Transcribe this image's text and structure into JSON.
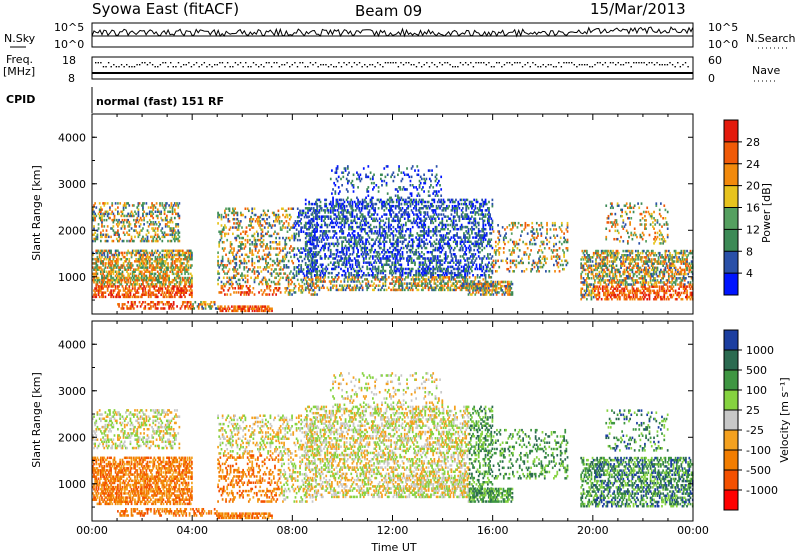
{
  "header": {
    "station": "Syowa East (fitACF)",
    "beam": "Beam 09",
    "date": "15/Mar/2013"
  },
  "top_panels": {
    "nsky_label": "N.Sky",
    "nsky_ticks": [
      "10^5",
      "10^0"
    ],
    "nsearch_label": "N.Search",
    "nsearch_ticks": [
      "10^5",
      "10^0"
    ],
    "freq_label_1": "Freq.",
    "freq_label_2": "[MHz]",
    "freq_ticks": [
      "18",
      "8"
    ],
    "nave_label": "Nave",
    "nave_ticks": [
      "60",
      "0"
    ],
    "cpid_label": "CPID",
    "cpid_value": "normal (fast) 151 RF"
  },
  "colors": {
    "power": [
      "#0014ff",
      "#2a50a8",
      "#3c8a56",
      "#55a060",
      "#e7c31e",
      "#f28a0c",
      "#f05a08",
      "#e41a0c"
    ],
    "velocity": [
      "#ff0000",
      "#f45000",
      "#f27d00",
      "#f4a11f",
      "#c8c8c8",
      "#86d340",
      "#3f9642",
      "#2b6a50",
      "#1c3ea0"
    ]
  },
  "chart_data": [
    {
      "type": "heatmap",
      "title": "Power",
      "ylabel": "Slant Range [km]",
      "xlabel": "",
      "x": [
        "00:00",
        "04:00",
        "08:00",
        "12:00",
        "16:00",
        "20:00",
        "00:00"
      ],
      "y_ticks": [
        "1000",
        "2000",
        "3000",
        "4000"
      ],
      "ylim": [
        200,
        4500
      ],
      "colorbar_label": "Power [dB]",
      "colorbar_ticks": [
        "4",
        "8",
        "12",
        "16",
        "20",
        "24",
        "28"
      ]
    },
    {
      "type": "heatmap",
      "title": "Velocity",
      "ylabel": "Slant Range [km]",
      "xlabel": "Time UT",
      "x": [
        "00:00",
        "04:00",
        "08:00",
        "12:00",
        "16:00",
        "20:00",
        "00:00"
      ],
      "y_ticks": [
        "1000",
        "2000",
        "3000",
        "4000"
      ],
      "ylim": [
        200,
        4500
      ],
      "colorbar_label": "Velocity [m s⁻¹]",
      "colorbar_ticks": [
        "-1000",
        "-500",
        "-100",
        "-25",
        "25",
        "100",
        "500",
        "1000"
      ]
    }
  ]
}
